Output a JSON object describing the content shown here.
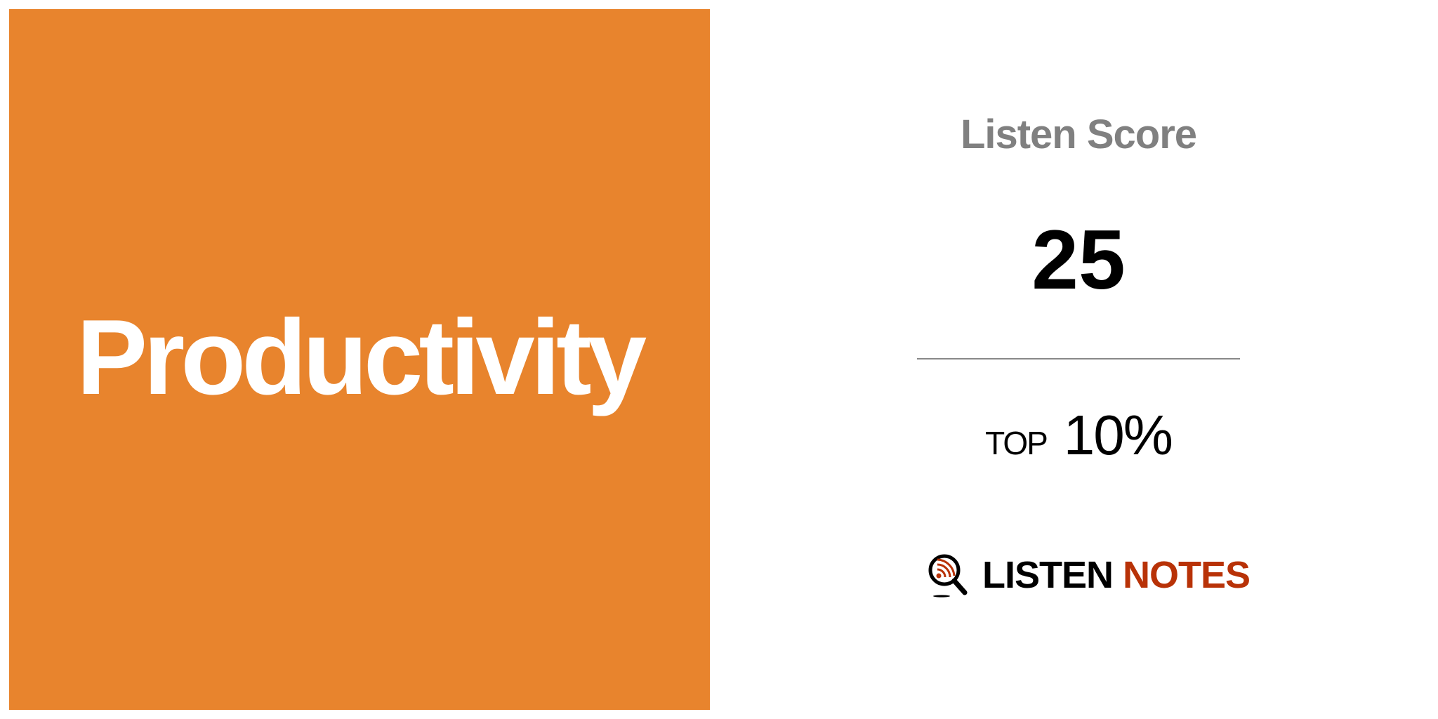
{
  "cover": {
    "title": "Productivity",
    "background": "#e8842d"
  },
  "score": {
    "label": "Listen Score",
    "value": "25"
  },
  "rank": {
    "prefix": "TOP",
    "percent": "10%"
  },
  "brand": {
    "word1": "LISTEN",
    "word2": "NOTES",
    "accent": "#b83207",
    "icon": "magnifier-podcast-icon"
  }
}
